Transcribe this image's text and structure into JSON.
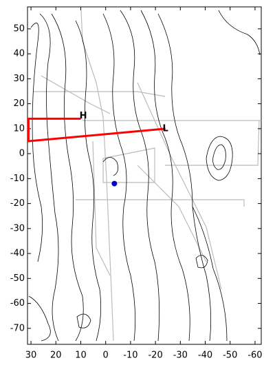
{
  "map": {
    "xlim": [
      31.4,
      -62.5
    ],
    "ylim": [
      58.8,
      -76.4
    ],
    "xticks": [
      30,
      20,
      10,
      0,
      -10,
      -20,
      -30,
      -40,
      -50,
      -60
    ],
    "yticks": [
      50,
      40,
      30,
      20,
      10,
      0,
      -10,
      -20,
      -30,
      -40,
      -50,
      -60,
      -70
    ],
    "markers": [
      {
        "label": "H",
        "x": 9,
        "y": 15,
        "color": "#0000cc"
      },
      {
        "label": "L",
        "x": -24,
        "y": 10,
        "color": "#0000cc"
      }
    ],
    "point": {
      "x": -3.5,
      "y": -12,
      "color": "#0000cc"
    },
    "route": {
      "color": "#ff0000",
      "x": [
        10,
        31,
        31,
        -24
      ],
      "y": [
        14,
        14,
        5,
        10
      ]
    }
  }
}
